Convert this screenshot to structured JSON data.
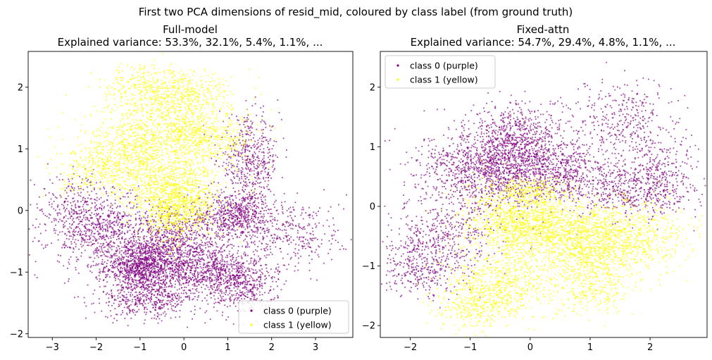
{
  "figure": {
    "suptitle": "First two PCA dimensions of resid_mid, coloured by class label (from ground truth)"
  },
  "colors": {
    "class0": "#800080",
    "class1": "#ffff00",
    "axes": "#000000",
    "legend_border": "#cccccc"
  },
  "chart_data": [
    {
      "type": "scatter",
      "title": "Full-model\nExplained variance: 53.3%, 32.1%, 5.4%, 1.1%,  ...",
      "title_line1": "Full-model",
      "title_line2": "Explained variance: 53.3%, 32.1%, 5.4%, 1.1%,  ...",
      "xlabel": "",
      "ylabel": "",
      "xlim": [
        -3.55,
        3.85
      ],
      "ylim": [
        -2.06,
        2.58
      ],
      "xticks": [
        -3,
        -2,
        -1,
        0,
        1,
        2,
        3
      ],
      "yticks": [
        -2,
        -1,
        0,
        1,
        2
      ],
      "grid": false,
      "legend_position": "lower-right",
      "series": [
        {
          "name": "class 0 (purple)",
          "color": "#800080",
          "clusters": [
            {
              "center": [
                -1.0,
                -0.9
              ],
              "spread": [
                0.4,
                0.22
              ],
              "count": 900
            },
            {
              "center": [
                0.3,
                -0.95
              ],
              "spread": [
                0.8,
                0.22
              ],
              "count": 1100
            },
            {
              "center": [
                1.2,
                -0.1
              ],
              "spread": [
                0.55,
                0.2
              ],
              "count": 700
            },
            {
              "center": [
                1.5,
                0.8
              ],
              "spread": [
                0.35,
                0.35
              ],
              "count": 500
            },
            {
              "center": [
                -1.8,
                -0.35
              ],
              "spread": [
                0.65,
                0.3
              ],
              "count": 800
            },
            {
              "center": [
                -0.8,
                -1.45
              ],
              "spread": [
                0.55,
                0.15
              ],
              "count": 400
            },
            {
              "center": [
                1.3,
                -1.25
              ],
              "spread": [
                0.4,
                0.22
              ],
              "count": 400
            },
            {
              "center": [
                2.6,
                -0.4
              ],
              "spread": [
                0.55,
                0.3
              ],
              "count": 250
            },
            {
              "center": [
                -2.5,
                0.15
              ],
              "spread": [
                0.45,
                0.25
              ],
              "count": 200
            },
            {
              "center": [
                -0.2,
                -0.45
              ],
              "spread": [
                0.5,
                0.25
              ],
              "count": 500
            }
          ]
        },
        {
          "name": "class 1 (yellow)",
          "color": "#ffff00",
          "clusters": [
            {
              "center": [
                -0.2,
                0.35
              ],
              "spread": [
                0.55,
                0.3
              ],
              "count": 800
            },
            {
              "center": [
                -0.5,
                1.3
              ],
              "spread": [
                0.8,
                0.3
              ],
              "count": 700
            },
            {
              "center": [
                0.5,
                1.2
              ],
              "spread": [
                0.6,
                0.2
              ],
              "count": 400
            },
            {
              "center": [
                -0.8,
                2.0
              ],
              "spread": [
                0.5,
                0.2
              ],
              "count": 300
            },
            {
              "center": [
                0.1,
                1.85
              ],
              "spread": [
                0.5,
                0.18
              ],
              "count": 300
            },
            {
              "center": [
                -1.9,
                0.65
              ],
              "spread": [
                0.45,
                0.22
              ],
              "count": 350
            },
            {
              "center": [
                -1.1,
                0.9
              ],
              "spread": [
                0.3,
                0.25
              ],
              "count": 250
            },
            {
              "center": [
                -0.2,
                0.0
              ],
              "spread": [
                0.35,
                0.25
              ],
              "count": 500
            }
          ]
        }
      ]
    },
    {
      "type": "scatter",
      "title": "Fixed-attn\nExplained variance: 54.7%, 29.4%, 4.8%, 1.1%,  ...",
      "title_line1": "Fixed-attn",
      "title_line2": "Explained variance: 54.7%, 29.4%, 4.8%, 1.1%,  ...",
      "xlabel": "",
      "ylabel": "",
      "xlim": [
        -2.5,
        2.95
      ],
      "ylim": [
        -2.2,
        2.6
      ],
      "xticks": [
        -2,
        -1,
        0,
        1,
        2
      ],
      "yticks": [
        -2,
        -1,
        0,
        1,
        2
      ],
      "grid": false,
      "legend_position": "upper-left",
      "series": [
        {
          "name": "class 0 (purple)",
          "color": "#800080",
          "clusters": [
            {
              "center": [
                -0.7,
                0.6
              ],
              "spread": [
                0.55,
                0.35
              ],
              "count": 1200
            },
            {
              "center": [
                -0.2,
                1.1
              ],
              "spread": [
                0.4,
                0.3
              ],
              "count": 700
            },
            {
              "center": [
                0.5,
                0.6
              ],
              "spread": [
                0.45,
                0.25
              ],
              "count": 600
            },
            {
              "center": [
                1.7,
                0.25
              ],
              "spread": [
                0.5,
                0.25
              ],
              "count": 500
            },
            {
              "center": [
                1.6,
                1.4
              ],
              "spread": [
                0.45,
                0.35
              ],
              "count": 350
            },
            {
              "center": [
                -1.5,
                -0.6
              ],
              "spread": [
                0.45,
                0.35
              ],
              "count": 500
            },
            {
              "center": [
                -1.9,
                -1.1
              ],
              "spread": [
                0.3,
                0.2
              ],
              "count": 200
            },
            {
              "center": [
                2.2,
                0.6
              ],
              "spread": [
                0.3,
                0.3
              ],
              "count": 200
            }
          ]
        },
        {
          "name": "class 1 (yellow)",
          "color": "#ffff00",
          "clusters": [
            {
              "center": [
                -0.3,
                -0.2
              ],
              "spread": [
                0.4,
                0.3
              ],
              "count": 800
            },
            {
              "center": [
                0.5,
                -0.4
              ],
              "spread": [
                0.55,
                0.25
              ],
              "count": 900
            },
            {
              "center": [
                1.6,
                -0.5
              ],
              "spread": [
                0.55,
                0.3
              ],
              "count": 700
            },
            {
              "center": [
                1.0,
                -0.9
              ],
              "spread": [
                0.4,
                0.22
              ],
              "count": 400
            },
            {
              "center": [
                -0.5,
                -1.3
              ],
              "spread": [
                0.45,
                0.3
              ],
              "count": 600
            },
            {
              "center": [
                -1.0,
                -1.7
              ],
              "spread": [
                0.3,
                0.22
              ],
              "count": 250
            },
            {
              "center": [
                1.0,
                -1.45
              ],
              "spread": [
                0.3,
                0.2
              ],
              "count": 200
            },
            {
              "center": [
                0.1,
                0.25
              ],
              "spread": [
                0.3,
                0.12
              ],
              "count": 200
            }
          ]
        }
      ]
    }
  ]
}
